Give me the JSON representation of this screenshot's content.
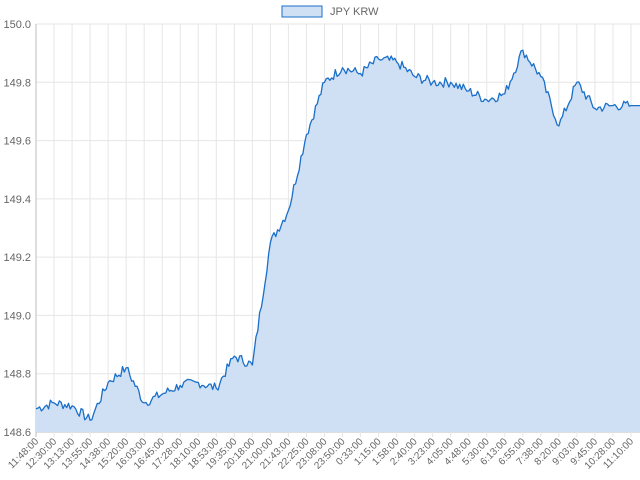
{
  "chart_data": {
    "type": "area",
    "title": "",
    "xlabel": "",
    "ylabel": "",
    "legend": {
      "position": "top",
      "entries": [
        "JPY KRW"
      ]
    },
    "grid": true,
    "ylim": [
      148.6,
      150.0
    ],
    "yticks": [
      "148.6",
      "148.8",
      "149.0",
      "149.2",
      "149.4",
      "149.6",
      "149.8",
      "150.0"
    ],
    "x": [
      "11:48:00",
      "12:30:00",
      "13:13:00",
      "13:55:00",
      "14:38:00",
      "15:20:00",
      "16:03:00",
      "16:45:00",
      "17:28:00",
      "18:10:00",
      "18:53:00",
      "19:35:00",
      "20:18:00",
      "21:00:00",
      "21:43:00",
      "22:25:00",
      "23:08:00",
      "23:50:00",
      "0:33:00",
      "1:15:00",
      "1:58:00",
      "2:40:00",
      "3:23:00",
      "4:05:00",
      "4:48:00",
      "5:30:00",
      "6:13:00",
      "6:55:00",
      "7:38:00",
      "8:20:00",
      "9:03:00",
      "9:45:00",
      "10:28:00",
      "11:10:00"
    ],
    "series": [
      {
        "name": "JPY KRW",
        "color": "#1a6fc9",
        "fill": "#cfe0f5",
        "values": [
          148.68,
          148.7,
          148.69,
          148.64,
          148.77,
          148.82,
          148.7,
          148.73,
          148.76,
          148.77,
          148.75,
          148.86,
          148.83,
          149.25,
          149.36,
          149.62,
          149.8,
          149.85,
          149.83,
          149.88,
          149.87,
          149.82,
          149.8,
          149.8,
          149.77,
          149.74,
          149.76,
          149.91,
          149.82,
          149.65,
          149.8,
          149.71,
          149.72,
          149.72
        ]
      }
    ]
  }
}
